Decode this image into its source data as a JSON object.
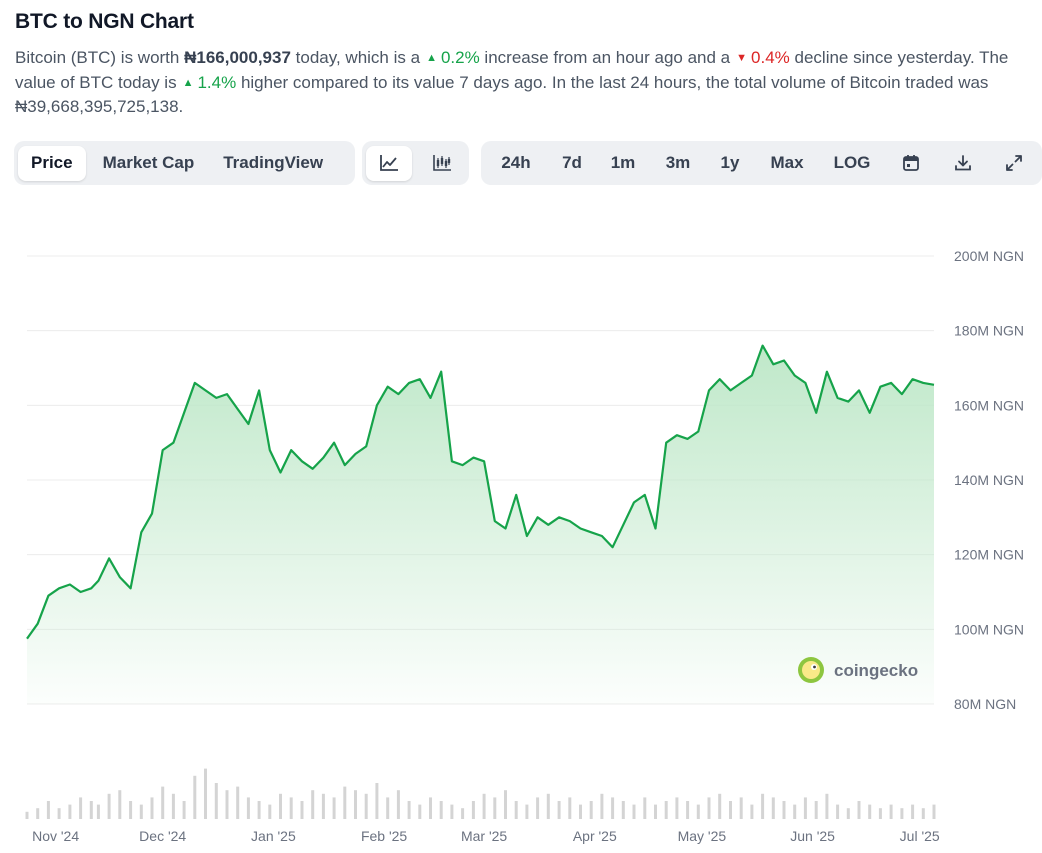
{
  "header": {
    "title": "BTC to NGN Chart"
  },
  "summary": {
    "p1": "Bitcoin (BTC) is worth ",
    "price": "₦166,000,937",
    "p2": " today, which is a",
    "hour_change": "0.2%",
    "p3": " increase from an hour ago and a",
    "day_change": "0.4%",
    "p4": " decline since yesterday. The value of BTC today is",
    "week_change": "1.4%",
    "p5": " higher compared to its value 7 days ago. In the last 24 hours, the total volume of Bitcoin traded was ₦39,668,395,725,138."
  },
  "tabs": {
    "view": [
      {
        "label": "Price",
        "active": true
      },
      {
        "label": "Market Cap",
        "active": false
      },
      {
        "label": "TradingView",
        "active": false
      }
    ],
    "chart_type_icons": [
      "line-chart-icon",
      "candlestick-icon"
    ],
    "ranges": [
      "24h",
      "7d",
      "1m",
      "3m",
      "1y",
      "Max",
      "LOG"
    ],
    "tool_icons": [
      "calendar-icon",
      "download-icon",
      "expand-icon"
    ]
  },
  "watermark": "coingecko",
  "colors": {
    "line": "#16a34a",
    "area_top": "#bfe8c9",
    "grid": "#ececec",
    "volume": "#d4d4d4",
    "up": "#16a34a",
    "down": "#dc2626"
  },
  "chart_data": {
    "type": "area",
    "title": "",
    "xlabel": "",
    "ylabel": "",
    "x_ticks": [
      "Nov '24",
      "Dec '24",
      "Jan '25",
      "Feb '25",
      "Mar '25",
      "Apr '25",
      "May '25",
      "Jun '25",
      "Jul '25"
    ],
    "y_ticks": [
      "80M NGN",
      "100M NGN",
      "120M NGN",
      "140M NGN",
      "160M NGN",
      "180M NGN",
      "200M NGN"
    ],
    "ylim": [
      80,
      200
    ],
    "y_unit": "M NGN",
    "grid": true,
    "x": [
      "2024-10-24",
      "2024-10-27",
      "2024-10-30",
      "2024-11-02",
      "2024-11-05",
      "2024-11-08",
      "2024-11-11",
      "2024-11-13",
      "2024-11-16",
      "2024-11-19",
      "2024-11-22",
      "2024-11-25",
      "2024-11-28",
      "2024-12-01",
      "2024-12-04",
      "2024-12-07",
      "2024-12-10",
      "2024-12-13",
      "2024-12-16",
      "2024-12-19",
      "2024-12-22",
      "2024-12-25",
      "2024-12-28",
      "2024-12-31",
      "2025-01-03",
      "2025-01-06",
      "2025-01-09",
      "2025-01-12",
      "2025-01-15",
      "2025-01-18",
      "2025-01-21",
      "2025-01-24",
      "2025-01-27",
      "2025-01-30",
      "2025-02-02",
      "2025-02-05",
      "2025-02-08",
      "2025-02-11",
      "2025-02-14",
      "2025-02-17",
      "2025-02-20",
      "2025-02-23",
      "2025-02-26",
      "2025-03-01",
      "2025-03-04",
      "2025-03-07",
      "2025-03-10",
      "2025-03-13",
      "2025-03-16",
      "2025-03-19",
      "2025-03-22",
      "2025-03-25",
      "2025-03-28",
      "2025-03-31",
      "2025-04-03",
      "2025-04-06",
      "2025-04-09",
      "2025-04-12",
      "2025-04-15",
      "2025-04-18",
      "2025-04-21",
      "2025-04-24",
      "2025-04-27",
      "2025-04-30",
      "2025-05-03",
      "2025-05-06",
      "2025-05-09",
      "2025-05-12",
      "2025-05-15",
      "2025-05-18",
      "2025-05-21",
      "2025-05-24",
      "2025-05-27",
      "2025-05-30",
      "2025-06-02",
      "2025-06-05",
      "2025-06-08",
      "2025-06-11",
      "2025-06-14",
      "2025-06-17",
      "2025-06-20",
      "2025-06-23",
      "2025-06-26",
      "2025-06-29",
      "2025-07-02",
      "2025-07-05"
    ],
    "series": [
      {
        "values": [
          97.5,
          101.5,
          109,
          111,
          112,
          110,
          111,
          113,
          119,
          114,
          111,
          126,
          131,
          148,
          150,
          158,
          166,
          164,
          162,
          163,
          159,
          155,
          164,
          148,
          142,
          148,
          145,
          143,
          146,
          150,
          144,
          147,
          149,
          160,
          165,
          163,
          166,
          167,
          162,
          169,
          145,
          144,
          146,
          145,
          129,
          127,
          136,
          125,
          130,
          128,
          130,
          129,
          127,
          126,
          125,
          122,
          128,
          134,
          136,
          127,
          150,
          152,
          151,
          153,
          164,
          167,
          164,
          166,
          168,
          176,
          171,
          172,
          168,
          166,
          158,
          169,
          162,
          161,
          164,
          158,
          165,
          166,
          163,
          167,
          166,
          165.5
        ]
      }
    ],
    "volume_relative": [
      2,
      3,
      5,
      3,
      4,
      6,
      5,
      4,
      7,
      8,
      5,
      4,
      6,
      9,
      7,
      5,
      12,
      14,
      10,
      8,
      9,
      6,
      5,
      4,
      7,
      6,
      5,
      8,
      7,
      6,
      9,
      8,
      7,
      10,
      6,
      8,
      5,
      4,
      6,
      5,
      4,
      3,
      5,
      7,
      6,
      8,
      5,
      4,
      6,
      7,
      5,
      6,
      4,
      5,
      7,
      6,
      5,
      4,
      6,
      4,
      5,
      6,
      5,
      4,
      6,
      7,
      5,
      6,
      4,
      7,
      6,
      5,
      4,
      6,
      5,
      7,
      4,
      3,
      5,
      4,
      3,
      4,
      3,
      4,
      3,
      4
    ],
    "volume_unit": "relative bar height (0-16)"
  }
}
